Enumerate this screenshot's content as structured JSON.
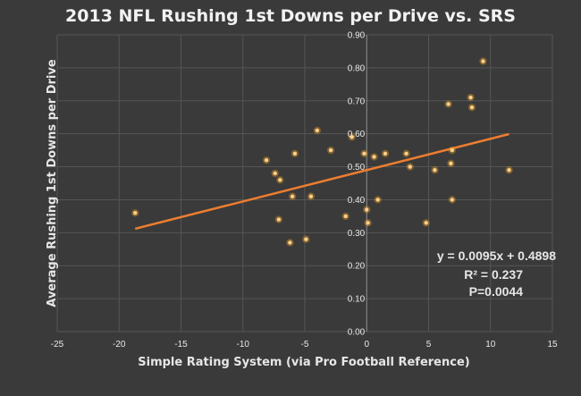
{
  "chart_data": {
    "type": "scatter",
    "title": "2013 NFL Rushing 1st Downs per Drive vs. SRS",
    "xlabel": "Simple Rating System (via Pro Football Reference)",
    "ylabel": "Average Rushing 1st Downs per Drive",
    "xlim": [
      -25,
      15
    ],
    "ylim": [
      0,
      0.9
    ],
    "x_ticks": [
      "-25",
      "-20",
      "-15",
      "-10",
      "-5",
      "0",
      "5",
      "10",
      "15"
    ],
    "y_ticks": [
      "0.00",
      "0.10",
      "0.20",
      "0.30",
      "0.40",
      "0.50",
      "0.60",
      "0.70",
      "0.80",
      "0.90"
    ],
    "grid": true,
    "colors": {
      "background": "#3a3a3a",
      "grid": "#555555",
      "point": "#f5a623",
      "trendline": "#ed7d31"
    },
    "points": [
      {
        "x": -18.7,
        "y": 0.36
      },
      {
        "x": -8.1,
        "y": 0.52
      },
      {
        "x": -7.4,
        "y": 0.48
      },
      {
        "x": -7.0,
        "y": 0.46
      },
      {
        "x": -5.8,
        "y": 0.54
      },
      {
        "x": -6.0,
        "y": 0.41
      },
      {
        "x": -7.1,
        "y": 0.34
      },
      {
        "x": -6.2,
        "y": 0.27
      },
      {
        "x": -4.9,
        "y": 0.28
      },
      {
        "x": -4.5,
        "y": 0.41
      },
      {
        "x": -4.0,
        "y": 0.61
      },
      {
        "x": -2.9,
        "y": 0.55
      },
      {
        "x": -1.7,
        "y": 0.35
      },
      {
        "x": -1.2,
        "y": 0.59
      },
      {
        "x": -0.2,
        "y": 0.54
      },
      {
        "x": 0.0,
        "y": 0.37
      },
      {
        "x": 0.1,
        "y": 0.33
      },
      {
        "x": 0.6,
        "y": 0.53
      },
      {
        "x": 0.9,
        "y": 0.4
      },
      {
        "x": 1.5,
        "y": 0.54
      },
      {
        "x": 3.2,
        "y": 0.54
      },
      {
        "x": 3.5,
        "y": 0.5
      },
      {
        "x": 4.8,
        "y": 0.33
      },
      {
        "x": 5.5,
        "y": 0.49
      },
      {
        "x": 6.6,
        "y": 0.69
      },
      {
        "x": 6.9,
        "y": 0.55
      },
      {
        "x": 6.8,
        "y": 0.51
      },
      {
        "x": 6.9,
        "y": 0.4
      },
      {
        "x": 8.4,
        "y": 0.71
      },
      {
        "x": 8.5,
        "y": 0.68
      },
      {
        "x": 9.4,
        "y": 0.82
      },
      {
        "x": 11.5,
        "y": 0.49
      }
    ],
    "trendline": {
      "slope": 0.0095,
      "intercept": 0.4898,
      "x_range": [
        -18.7,
        11.5
      ]
    },
    "annotations": [
      "y = 0.0095x + 0.4898",
      "R² = 0.237",
      "P=0.0044"
    ]
  }
}
